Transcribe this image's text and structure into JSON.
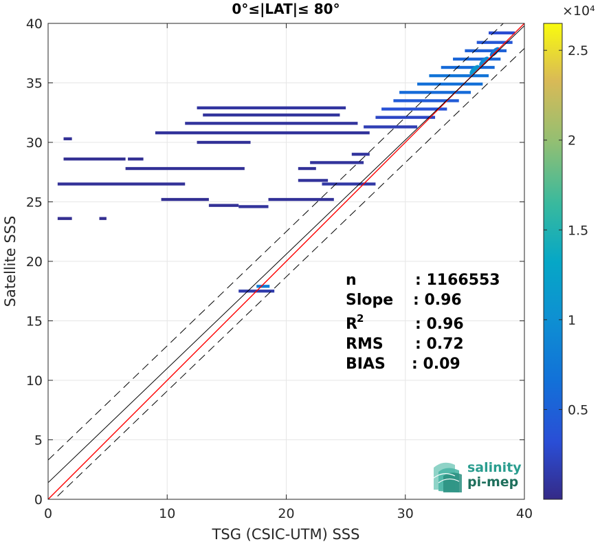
{
  "chart_data": {
    "type": "heatmap",
    "title": "0°≤|LAT|≤ 80°",
    "xlabel": "TSG (CSIC-UTM) SSS",
    "ylabel": "Satellite SSS",
    "xlim": [
      0,
      40
    ],
    "ylim": [
      0,
      40
    ],
    "xticks": [
      "0",
      "10",
      "20",
      "30",
      "40"
    ],
    "yticks": [
      "0",
      "5",
      "10",
      "15",
      "20",
      "25",
      "30",
      "35",
      "40"
    ],
    "grid": true,
    "colorbar": {
      "label_exponent": "×10⁴",
      "ticks": [
        "0.5",
        "1",
        "1.5",
        "2",
        "2.5"
      ],
      "tick_values": [
        5000,
        10000,
        15000,
        20000,
        25000
      ],
      "range": [
        0,
        26500
      ],
      "colormap": "parula"
    },
    "reference_lines": [
      {
        "role": "identity",
        "color": "#ff0000",
        "style": "solid",
        "slope": 1,
        "intercept": 0
      },
      {
        "role": "regression",
        "color": "#000000",
        "style": "solid",
        "slope": 0.96,
        "intercept": 1.4
      },
      {
        "role": "upper-bound",
        "color": "#000000",
        "style": "dashed",
        "slope": 0.96,
        "intercept": 3.3
      },
      {
        "role": "lower-bound",
        "color": "#000000",
        "style": "dashed",
        "slope": 0.96,
        "intercept": -0.5
      }
    ],
    "density_segments": [
      {
        "x": [
          1.3,
          2.0
        ],
        "y": 30.3,
        "density": 600
      },
      {
        "x": [
          1.3,
          6.5
        ],
        "y": 28.6,
        "density": 500
      },
      {
        "x": [
          6.7,
          8.0
        ],
        "y": 28.6,
        "density": 500
      },
      {
        "x": [
          6.5,
          16.5
        ],
        "y": 27.8,
        "density": 600
      },
      {
        "x": [
          0.8,
          11.5
        ],
        "y": 26.5,
        "density": 700
      },
      {
        "x": [
          9.5,
          13.5
        ],
        "y": 25.2,
        "density": 500
      },
      {
        "x": [
          13.5,
          16.0
        ],
        "y": 24.7,
        "density": 600
      },
      {
        "x": [
          16.0,
          18.5
        ],
        "y": 24.6,
        "density": 800
      },
      {
        "x": [
          0.8,
          2.0
        ],
        "y": 23.6,
        "density": 400
      },
      {
        "x": [
          4.3,
          4.9
        ],
        "y": 23.6,
        "density": 400
      },
      {
        "x": [
          18.5,
          24.0
        ],
        "y": 25.2,
        "density": 700
      },
      {
        "x": [
          21.0,
          23.5
        ],
        "y": 26.8,
        "density": 800
      },
      {
        "x": [
          23.0,
          27.5
        ],
        "y": 26.5,
        "density": 1200
      },
      {
        "x": [
          21.0,
          22.5
        ],
        "y": 27.8,
        "density": 700
      },
      {
        "x": [
          22.0,
          26.5
        ],
        "y": 28.3,
        "density": 800
      },
      {
        "x": [
          25.5,
          27.0
        ],
        "y": 29.0,
        "density": 900
      },
      {
        "x": [
          12.5,
          17.0
        ],
        "y": 30.0,
        "density": 700
      },
      {
        "x": [
          9.0,
          27.0
        ],
        "y": 30.8,
        "density": 800
      },
      {
        "x": [
          11.5,
          26.0
        ],
        "y": 31.6,
        "density": 900
      },
      {
        "x": [
          13.0,
          24.5
        ],
        "y": 32.3,
        "density": 900
      },
      {
        "x": [
          12.5,
          25.0
        ],
        "y": 32.9,
        "density": 1000
      },
      {
        "x": [
          26.5,
          31.0
        ],
        "y": 31.3,
        "density": 1800
      },
      {
        "x": [
          27.5,
          32.5
        ],
        "y": 32.1,
        "density": 2500
      },
      {
        "x": [
          28.0,
          33.5
        ],
        "y": 32.8,
        "density": 3500
      },
      {
        "x": [
          29.0,
          34.5
        ],
        "y": 33.5,
        "density": 4500
      },
      {
        "x": [
          29.5,
          35.5
        ],
        "y": 34.2,
        "density": 6000
      },
      {
        "x": [
          31.0,
          36.5
        ],
        "y": 34.9,
        "density": 6500
      },
      {
        "x": [
          32.0,
          37.0
        ],
        "y": 35.6,
        "density": 7000
      },
      {
        "x": [
          33.0,
          37.5
        ],
        "y": 36.3,
        "density": 6000
      },
      {
        "x": [
          34.0,
          38.0
        ],
        "y": 37.0,
        "density": 5500
      },
      {
        "x": [
          35.0,
          38.5
        ],
        "y": 37.7,
        "density": 5000
      },
      {
        "x": [
          36.0,
          39.0
        ],
        "y": 38.4,
        "density": 4000
      },
      {
        "x": [
          37.0,
          39.2
        ],
        "y": 39.2,
        "density": 3000
      },
      {
        "x": [
          16.0,
          19.0
        ],
        "y": 17.5,
        "density": 1500
      },
      {
        "x": [
          17.5,
          18.6
        ],
        "y": 17.9,
        "density": 8000
      }
    ],
    "density_hotspots": [
      {
        "x": 35.8,
        "y": 36.1,
        "density": 11000
      },
      {
        "x": 36.6,
        "y": 36.8,
        "density": 9500
      },
      {
        "x": 37.5,
        "y": 37.6,
        "density": 7500
      }
    ],
    "stats": [
      {
        "label": "n",
        "value": ": 1166553"
      },
      {
        "label": "Slope",
        "value": ": 0.96"
      },
      {
        "label": "R",
        "sup": "2",
        "value": ": 0.96"
      },
      {
        "label": "RMS",
        "value": ": 0.72"
      },
      {
        "label": "BIAS",
        "value": ": 0.09"
      }
    ]
  },
  "logo": {
    "line1": "salinity",
    "line2": "pi-mep",
    "color1": "#2a9d8f",
    "color2": "#1e6f5c"
  }
}
